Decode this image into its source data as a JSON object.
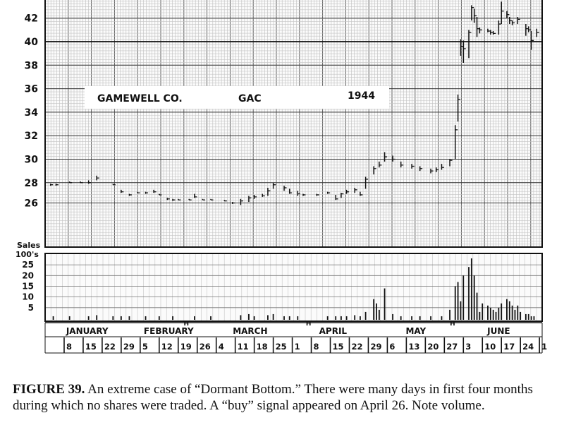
{
  "chart_data": {
    "type": "bar",
    "subtype": "daily high-low-close stock price chart with volume",
    "title_box": {
      "company": "GAMEWELL CO.",
      "ticker": "GAC",
      "year": "1944"
    },
    "price_axis": {
      "ticks": [
        26,
        28,
        30,
        32,
        34,
        36,
        38,
        40,
        42
      ],
      "ylim": [
        25.2,
        43.3
      ]
    },
    "volume_axis": {
      "label_line1": "Sales",
      "label_line2": "100's",
      "ticks": [
        5,
        10,
        15,
        20,
        25
      ],
      "ylim": [
        0,
        29
      ]
    },
    "reference_line": {
      "price": 40
    },
    "holiday_markers": [
      {
        "label": "H",
        "date": "Feb 22"
      },
      {
        "label": "H",
        "date": "Apr 7"
      },
      {
        "label": "H",
        "date": "May 30"
      }
    ],
    "months": [
      {
        "name": "JANUARY",
        "weeks": [
          "8",
          "15",
          "22",
          "29"
        ]
      },
      {
        "name": "FEBRUARY",
        "weeks": [
          "5",
          "12",
          "19",
          "26"
        ]
      },
      {
        "name": "MARCH",
        "weeks": [
          "4",
          "11",
          "18",
          "25"
        ]
      },
      {
        "name": "APRIL",
        "weeks": [
          "1",
          "8",
          "15",
          "22",
          "29"
        ]
      },
      {
        "name": "MAY",
        "weeks": [
          "6",
          "13",
          "20",
          "27"
        ]
      },
      {
        "name": "JUNE",
        "weeks": [
          "3",
          "10",
          "17",
          "24",
          "1"
        ]
      }
    ],
    "price_series": [
      {
        "d": "Jan 3",
        "h": 27.9,
        "l": 27.7,
        "c": 27.8
      },
      {
        "d": "Jan 5",
        "h": 27.9,
        "l": 27.7,
        "c": 27.8
      },
      {
        "d": "Jan 10",
        "h": 28.1,
        "l": 28.0,
        "c": 28.0
      },
      {
        "d": "Jan 14",
        "h": 28.1,
        "l": 28.0,
        "c": 28.0
      },
      {
        "d": "Jan 17",
        "h": 28.2,
        "l": 27.9,
        "c": 28.0
      },
      {
        "d": "Jan 20",
        "h": 28.6,
        "l": 28.2,
        "c": 28.4
      },
      {
        "d": "Jan 26",
        "h": 27.9,
        "l": 27.8,
        "c": 27.8
      },
      {
        "d": "Jan 29",
        "h": 27.3,
        "l": 27.0,
        "c": 27.1
      },
      {
        "d": "Feb 1",
        "h": 26.9,
        "l": 26.7,
        "c": 26.8
      },
      {
        "d": "Feb 4",
        "h": 27.1,
        "l": 27.0,
        "c": 27.0
      },
      {
        "d": "Feb 7",
        "h": 27.1,
        "l": 26.9,
        "c": 27.0
      },
      {
        "d": "Feb 10",
        "h": 27.3,
        "l": 27.0,
        "c": 27.1
      },
      {
        "d": "Feb 12",
        "h": 26.9,
        "l": 26.8,
        "c": 26.8
      },
      {
        "d": "Feb 15",
        "h": 26.5,
        "l": 26.3,
        "c": 26.4
      },
      {
        "d": "Feb 17",
        "h": 26.4,
        "l": 26.2,
        "c": 26.3
      },
      {
        "d": "Feb 19",
        "h": 26.4,
        "l": 26.3,
        "c": 26.3
      },
      {
        "d": "Feb 23",
        "h": 26.4,
        "l": 26.3,
        "c": 26.3
      },
      {
        "d": "Feb 25",
        "h": 26.9,
        "l": 26.5,
        "c": 26.6
      },
      {
        "d": "Feb 28",
        "h": 26.4,
        "l": 26.3,
        "c": 26.3
      },
      {
        "d": "Mar 2",
        "h": 26.4,
        "l": 26.3,
        "c": 26.3
      },
      {
        "d": "Mar 7",
        "h": 26.3,
        "l": 26.2,
        "c": 26.2
      },
      {
        "d": "Mar 10",
        "h": 26.1,
        "l": 25.9,
        "c": 26.0
      },
      {
        "d": "Mar 13",
        "h": 26.4,
        "l": 25.8,
        "c": 26.2
      },
      {
        "d": "Mar 16",
        "h": 26.7,
        "l": 26.1,
        "c": 26.5
      },
      {
        "d": "Mar 18",
        "h": 26.8,
        "l": 26.4,
        "c": 26.6
      },
      {
        "d": "Mar 21",
        "h": 26.9,
        "l": 26.6,
        "c": 26.7
      },
      {
        "d": "Mar 23",
        "h": 27.5,
        "l": 26.7,
        "c": 27.2
      },
      {
        "d": "Mar 25",
        "h": 28.0,
        "l": 27.4,
        "c": 27.8
      },
      {
        "d": "Mar 29",
        "h": 27.7,
        "l": 27.2,
        "c": 27.5
      },
      {
        "d": "Mar 31",
        "h": 27.4,
        "l": 26.9,
        "c": 27.0
      },
      {
        "d": "Apr 3",
        "h": 27.2,
        "l": 26.7,
        "c": 26.9
      },
      {
        "d": "Apr 5",
        "h": 26.9,
        "l": 26.7,
        "c": 26.8
      },
      {
        "d": "Apr 10",
        "h": 26.9,
        "l": 26.7,
        "c": 26.8
      },
      {
        "d": "Apr 14",
        "h": 27.1,
        "l": 26.9,
        "c": 27.0
      },
      {
        "d": "Apr 17",
        "h": 26.8,
        "l": 26.3,
        "c": 26.4
      },
      {
        "d": "Apr 19",
        "h": 27.0,
        "l": 26.5,
        "c": 26.9
      },
      {
        "d": "Apr 21",
        "h": 27.3,
        "l": 26.9,
        "c": 27.1
      },
      {
        "d": "Apr 24",
        "h": 27.5,
        "l": 27.0,
        "c": 27.3
      },
      {
        "d": "Apr 26",
        "h": 27.1,
        "l": 26.7,
        "c": 26.8
      },
      {
        "d": "Apr 28",
        "h": 28.5,
        "l": 27.4,
        "c": 28.3
      },
      {
        "d": "May 1",
        "h": 29.4,
        "l": 28.7,
        "c": 29.2
      },
      {
        "d": "May 3",
        "h": 29.8,
        "l": 29.3,
        "c": 29.5
      },
      {
        "d": "May 5",
        "h": 30.6,
        "l": 29.8,
        "c": 30.2
      },
      {
        "d": "May 8",
        "h": 30.3,
        "l": 29.8,
        "c": 30.0
      },
      {
        "d": "May 11",
        "h": 29.8,
        "l": 29.3,
        "c": 29.5
      },
      {
        "d": "May 15",
        "h": 29.6,
        "l": 29.2,
        "c": 29.4
      },
      {
        "d": "May 18",
        "h": 29.4,
        "l": 29.0,
        "c": 29.2
      },
      {
        "d": "May 22",
        "h": 29.2,
        "l": 28.8,
        "c": 29.0
      },
      {
        "d": "May 24",
        "h": 29.3,
        "l": 28.9,
        "c": 29.1
      },
      {
        "d": "May 26",
        "h": 29.6,
        "l": 29.1,
        "c": 29.3
      },
      {
        "d": "May 29",
        "h": 30.0,
        "l": 29.4,
        "c": 29.9
      },
      {
        "d": "May 31",
        "h": 32.9,
        "l": 30.0,
        "c": 32.5
      },
      {
        "d": "Jun 1",
        "h": 35.5,
        "l": 33.2,
        "c": 35.1
      },
      {
        "d": "Jun 2",
        "h": 40.2,
        "l": 38.8,
        "c": 39.6
      },
      {
        "d": "Jun 3",
        "h": 40.1,
        "l": 38.2,
        "c": 39.4
      },
      {
        "d": "Jun 5",
        "h": 41.0,
        "l": 38.6,
        "c": 40.8
      },
      {
        "d": "Jun 6",
        "h": 43.1,
        "l": 41.8,
        "c": 42.9
      },
      {
        "d": "Jun 7",
        "h": 42.8,
        "l": 41.6,
        "c": 42.2
      },
      {
        "d": "Jun 8",
        "h": 42.1,
        "l": 40.4,
        "c": 41.1
      },
      {
        "d": "Jun 9",
        "h": 41.2,
        "l": 40.7,
        "c": 41.0
      },
      {
        "d": "Jun 12",
        "h": 41.1,
        "l": 40.8,
        "c": 40.9
      },
      {
        "d": "Jun 13",
        "h": 41.0,
        "l": 40.6,
        "c": 40.8
      },
      {
        "d": "Jun 14",
        "h": 40.9,
        "l": 40.6,
        "c": 40.7
      },
      {
        "d": "Jun 16",
        "h": 41.8,
        "l": 40.6,
        "c": 41.5
      },
      {
        "d": "Jun 17",
        "h": 43.4,
        "l": 41.5,
        "c": 42.6
      },
      {
        "d": "Jun 19",
        "h": 42.6,
        "l": 42.0,
        "c": 42.3
      },
      {
        "d": "Jun 20",
        "h": 42.1,
        "l": 41.5,
        "c": 41.8
      },
      {
        "d": "Jun 21",
        "h": 41.8,
        "l": 41.4,
        "c": 41.6
      },
      {
        "d": "Jun 23",
        "h": 42.1,
        "l": 41.5,
        "c": 41.9
      },
      {
        "d": "Jun 26",
        "h": 41.5,
        "l": 40.5,
        "c": 41.1
      },
      {
        "d": "Jun 27",
        "h": 41.3,
        "l": 40.8,
        "c": 41.0
      },
      {
        "d": "Jun 28",
        "h": 40.9,
        "l": 39.3,
        "c": 40.1
      },
      {
        "d": "Jun 30",
        "h": 41.1,
        "l": 40.4,
        "c": 40.8
      }
    ],
    "volume_series": [
      {
        "d": "Jan 4",
        "v": 1
      },
      {
        "d": "Jan 10",
        "v": 1
      },
      {
        "d": "Jan 17",
        "v": 1
      },
      {
        "d": "Jan 20",
        "v": 1.5
      },
      {
        "d": "Jan 26",
        "v": 1
      },
      {
        "d": "Jan 29",
        "v": 1
      },
      {
        "d": "Feb 1",
        "v": 1
      },
      {
        "d": "Feb 7",
        "v": 1
      },
      {
        "d": "Feb 12",
        "v": 1
      },
      {
        "d": "Feb 17",
        "v": 1
      },
      {
        "d": "Feb 25",
        "v": 1
      },
      {
        "d": "Mar 2",
        "v": 1
      },
      {
        "d": "Mar 13",
        "v": 1.5
      },
      {
        "d": "Mar 16",
        "v": 2
      },
      {
        "d": "Mar 18",
        "v": 1
      },
      {
        "d": "Mar 23",
        "v": 1.5
      },
      {
        "d": "Mar 25",
        "v": 2
      },
      {
        "d": "Mar 29",
        "v": 1
      },
      {
        "d": "Mar 31",
        "v": 1
      },
      {
        "d": "Apr 3",
        "v": 1
      },
      {
        "d": "Apr 14",
        "v": 1
      },
      {
        "d": "Apr 17",
        "v": 1
      },
      {
        "d": "Apr 19",
        "v": 1
      },
      {
        "d": "Apr 21",
        "v": 1
      },
      {
        "d": "Apr 24",
        "v": 1.5
      },
      {
        "d": "Apr 26",
        "v": 1
      },
      {
        "d": "Apr 28",
        "v": 3
      },
      {
        "d": "May 1",
        "v": 9
      },
      {
        "d": "May 2",
        "v": 7
      },
      {
        "d": "May 3",
        "v": 4
      },
      {
        "d": "May 5",
        "v": 14
      },
      {
        "d": "May 8",
        "v": 2
      },
      {
        "d": "May 11",
        "v": 1
      },
      {
        "d": "May 15",
        "v": 1
      },
      {
        "d": "May 18",
        "v": 1
      },
      {
        "d": "May 22",
        "v": 1
      },
      {
        "d": "May 26",
        "v": 1
      },
      {
        "d": "May 29",
        "v": 4
      },
      {
        "d": "May 31",
        "v": 15
      },
      {
        "d": "Jun 1",
        "v": 17
      },
      {
        "d": "Jun 2",
        "v": 8
      },
      {
        "d": "Jun 3",
        "v": 20
      },
      {
        "d": "Jun 5",
        "v": 24
      },
      {
        "d": "Jun 6",
        "v": 28
      },
      {
        "d": "Jun 7",
        "v": 20
      },
      {
        "d": "Jun 8",
        "v": 12
      },
      {
        "d": "Jun 9",
        "v": 3
      },
      {
        "d": "Jun 10",
        "v": 7
      },
      {
        "d": "Jun 12",
        "v": 6
      },
      {
        "d": "Jun 13",
        "v": 5
      },
      {
        "d": "Jun 14",
        "v": 4
      },
      {
        "d": "Jun 15",
        "v": 3
      },
      {
        "d": "Jun 16",
        "v": 5
      },
      {
        "d": "Jun 17",
        "v": 7
      },
      {
        "d": "Jun 19",
        "v": 9
      },
      {
        "d": "Jun 20",
        "v": 8
      },
      {
        "d": "Jun 21",
        "v": 6
      },
      {
        "d": "Jun 22",
        "v": 4
      },
      {
        "d": "Jun 23",
        "v": 6
      },
      {
        "d": "Jun 24",
        "v": 3
      },
      {
        "d": "Jun 26",
        "v": 2
      },
      {
        "d": "Jun 27",
        "v": 2
      },
      {
        "d": "Jun 28",
        "v": 1
      },
      {
        "d": "Jun 29",
        "v": 1
      }
    ]
  },
  "caption": {
    "label": "FIGURE 39.",
    "text": "An extreme case of “Dormant Bottom.” There were many days in first four months during which no shares were traded. A “buy” signal appeared on April 26. Note volume."
  }
}
